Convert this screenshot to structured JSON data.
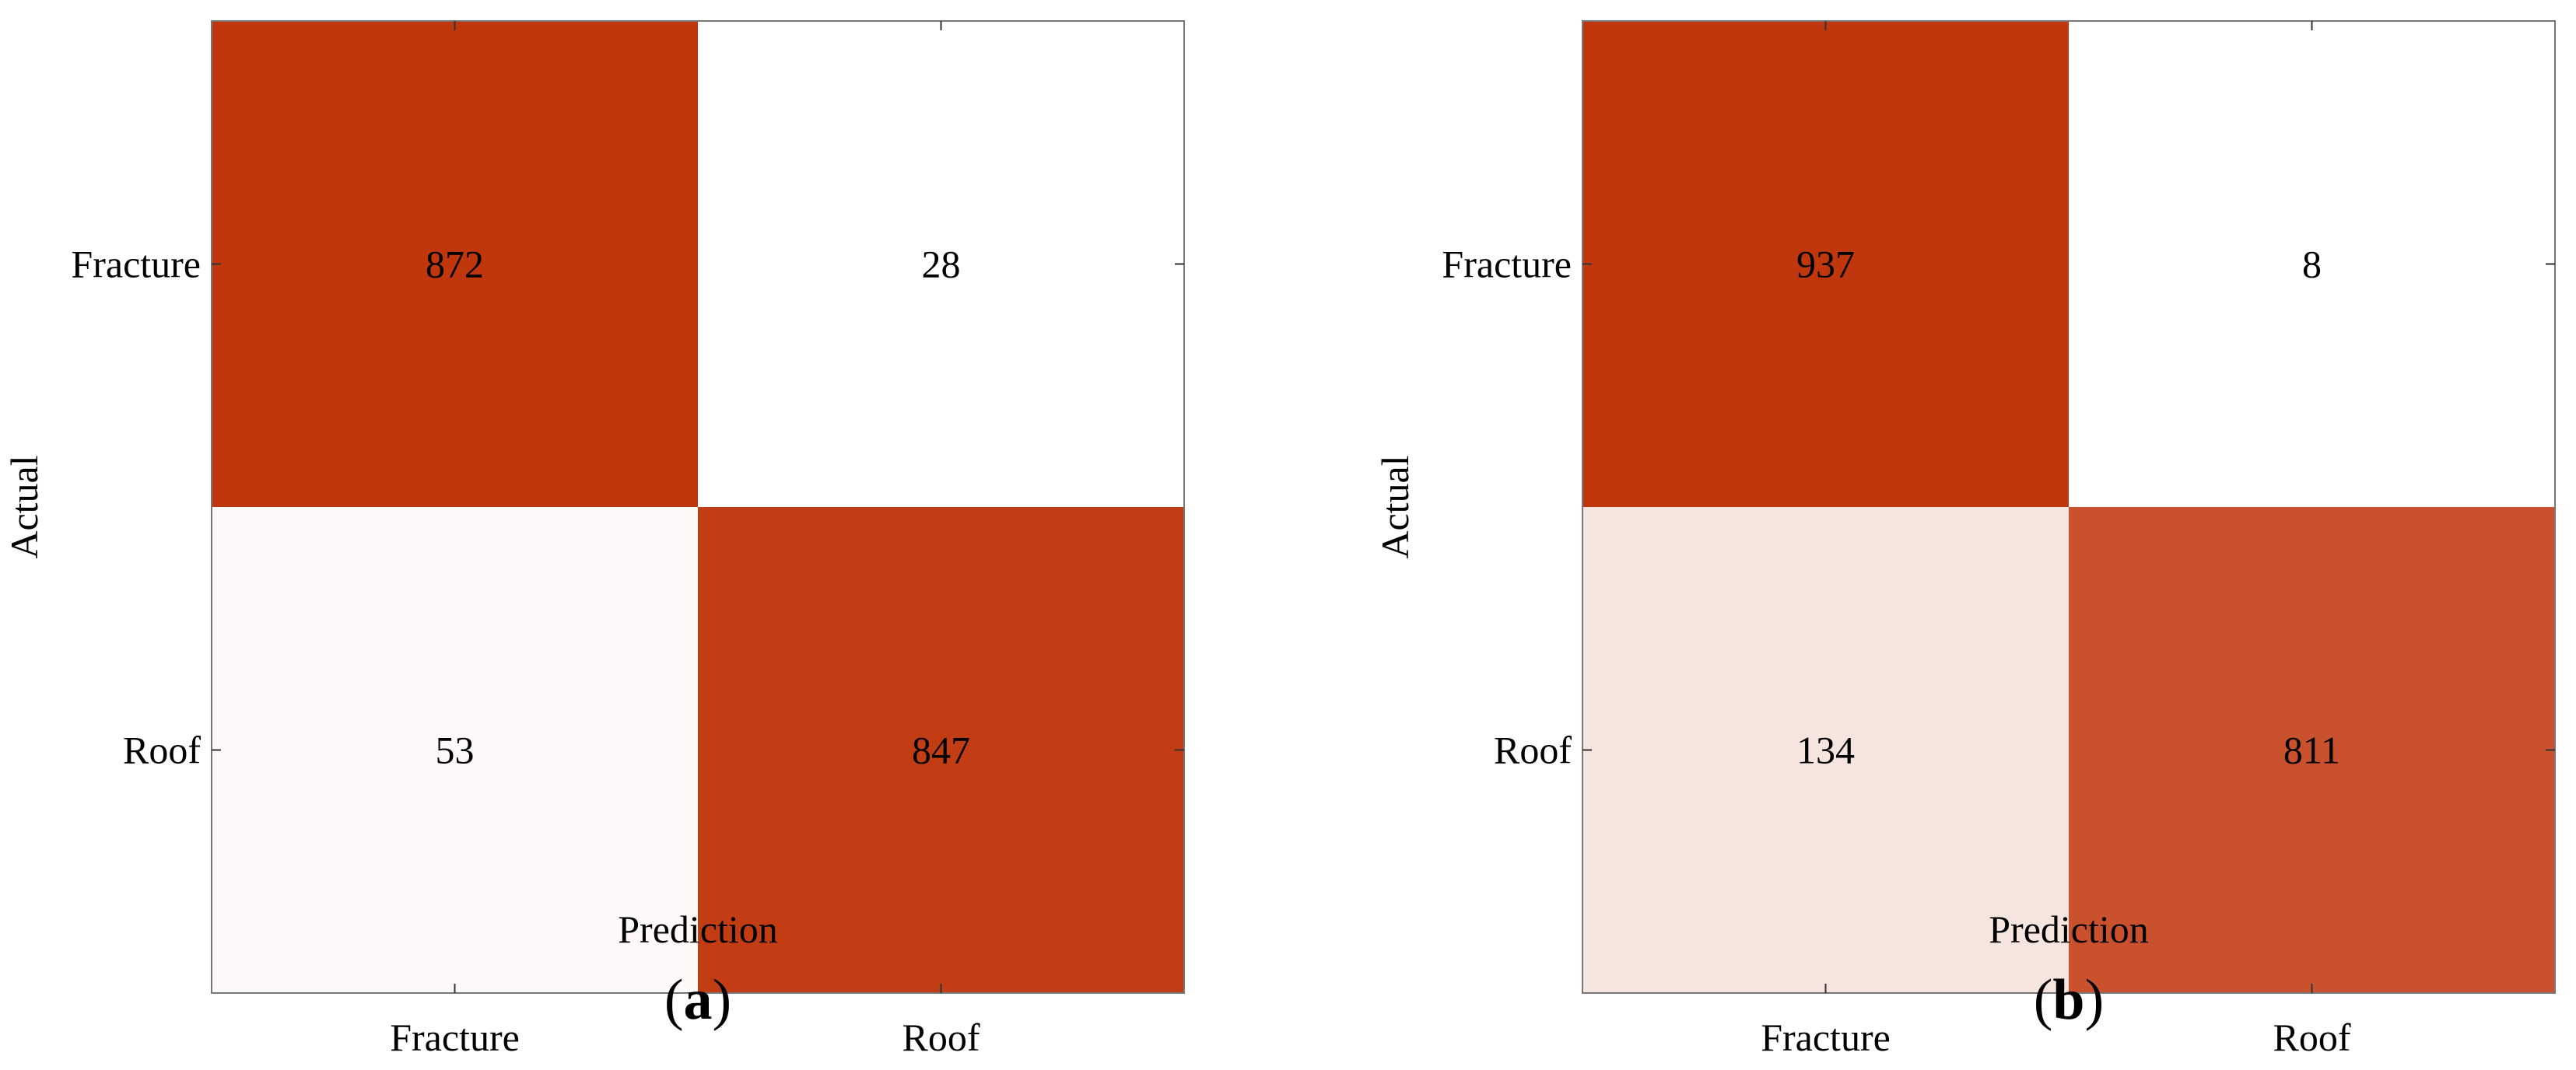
{
  "chart_data": [
    {
      "type": "heatmap",
      "panel_label": "a",
      "xlabel": "Prediction",
      "ylabel": "Actual",
      "x_categories": [
        "Fracture",
        "Roof"
      ],
      "y_categories": [
        "Fracture",
        "Roof"
      ],
      "values": [
        [
          872,
          28
        ],
        [
          53,
          847
        ]
      ],
      "colormap": {
        "low": "#ffffff",
        "high": "#c0360d"
      }
    },
    {
      "type": "heatmap",
      "panel_label": "b",
      "xlabel": "Prediction",
      "ylabel": "Actual",
      "x_categories": [
        "Fracture",
        "Roof"
      ],
      "y_categories": [
        "Fracture",
        "Roof"
      ],
      "values": [
        [
          937,
          8
        ],
        [
          134,
          811
        ]
      ],
      "colormap": {
        "low": "#ffffff",
        "high": "#c0360d"
      }
    }
  ]
}
